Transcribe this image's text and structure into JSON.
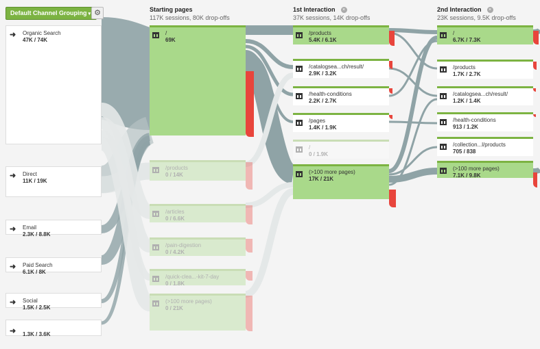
{
  "toolbar": {
    "dimension_label": "Default Channel Grouping",
    "caret": "▾",
    "settings_icon": "gear-icon"
  },
  "columns": [
    {
      "title": "Starting pages",
      "subtitle": "117K sessions, 80K drop-offs",
      "closable": false
    },
    {
      "title": "1st Interaction",
      "subtitle": "37K sessions, 14K drop-offs",
      "closable": true
    },
    {
      "title": "2nd Interaction",
      "subtitle": "23K sessions, 9.5K drop-offs",
      "closable": true
    }
  ],
  "sources": [
    {
      "name": "Organic Search",
      "value": "47K / 74K"
    },
    {
      "name": "Direct",
      "value": "11K / 19K"
    },
    {
      "name": "Email",
      "value": "2.3K / 8.8K"
    },
    {
      "name": "Paid Search",
      "value": "6.1K / 8K"
    },
    {
      "name": "Social",
      "value": "1.5K / 2.5K"
    },
    {
      "name": "",
      "value": "1.3K / 3.6K"
    }
  ],
  "starting_pages": [
    {
      "label": "/",
      "value": "69K"
    },
    {
      "label": "/products",
      "value": "0 / 14K"
    },
    {
      "label": "/articles",
      "value": "0 / 6.6K"
    },
    {
      "label": "/pain-digestion",
      "value": "0 / 4.2K"
    },
    {
      "label": "/quick-clea...-kit-7-day",
      "value": "0 / 1.8K"
    },
    {
      "label": "(>100 more pages)",
      "value": "0 / 21K"
    }
  ],
  "first_interaction": [
    {
      "label": "/products",
      "value": "5.4K / 6.1K"
    },
    {
      "label": "/catalogsea...ch/result/",
      "value": "2.9K / 3.2K"
    },
    {
      "label": "/health-conditions",
      "value": "2.2K / 2.7K"
    },
    {
      "label": "/pages",
      "value": "1.4K / 1.9K"
    },
    {
      "label": "/",
      "value": "0 / 1.9K"
    },
    {
      "label": "(>100 more pages)",
      "value": "17K / 21K"
    }
  ],
  "second_interaction": [
    {
      "label": "/",
      "value": "6.7K / 7.3K"
    },
    {
      "label": "/products",
      "value": "1.7K / 2.7K"
    },
    {
      "label": "/catalogsea...ch/result/",
      "value": "1.2K / 1.4K"
    },
    {
      "label": "/health-conditions",
      "value": "913 / 1.2K"
    },
    {
      "label": "/collection...l/products",
      "value": "705 / 838"
    },
    {
      "label": "(>100 more pages)",
      "value": "7.1K / 9.8K"
    }
  ],
  "colors": {
    "node_green": "#7cb342",
    "node_fill_big": "#a9d98a",
    "flow_gray": "#8fa3a6",
    "flow_light": "#dfe3e3",
    "dropoff_red": "#e8453c"
  }
}
